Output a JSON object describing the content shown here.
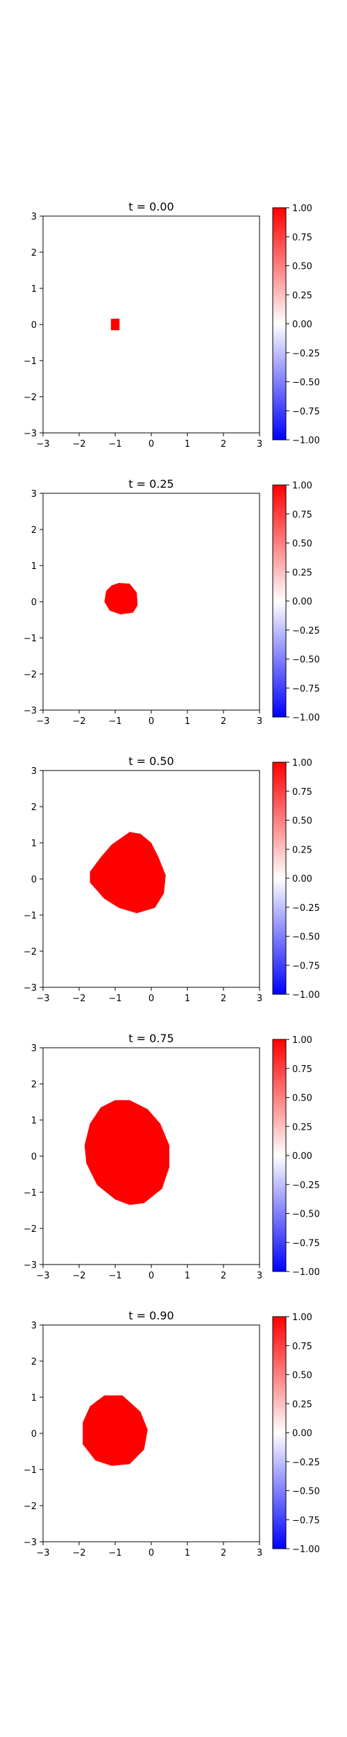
{
  "chart_data": [
    {
      "type": "heatmap",
      "title": "t = 0.00",
      "xlim": [
        -3,
        3
      ],
      "ylim": [
        -3,
        3
      ],
      "xticks": [
        -3,
        -2,
        -1,
        0,
        1,
        2,
        3
      ],
      "yticks": [
        -3,
        -2,
        -1,
        0,
        1,
        2,
        3
      ],
      "xtick_labels": [
        "−3",
        "−2",
        "−1",
        "0",
        "1",
        "2",
        "3"
      ],
      "ytick_labels": [
        "−3",
        "−2",
        "−1",
        "0",
        "1",
        "2",
        "3"
      ],
      "region_value": 1.0,
      "region_color": "#ff0000",
      "region_center": [
        -1.0,
        0.0
      ],
      "region_outline": [
        [
          -1.12,
          0.16
        ],
        [
          -0.88,
          0.16
        ],
        [
          -0.88,
          -0.16
        ],
        [
          -1.12,
          -0.16
        ]
      ],
      "colorbar": {
        "ticks": [
          1.0,
          0.75,
          0.5,
          0.25,
          0.0,
          -0.25,
          -0.5,
          -0.75,
          -1.0
        ],
        "labels": [
          "1.00",
          "0.75",
          "0.50",
          "0.25",
          "0.00",
          "−0.25",
          "−0.50",
          "−0.75",
          "−1.00"
        ],
        "colormap": "bwr"
      }
    },
    {
      "type": "heatmap",
      "title": "t = 0.25",
      "xlim": [
        -3,
        3
      ],
      "ylim": [
        -3,
        3
      ],
      "xticks": [
        -3,
        -2,
        -1,
        0,
        1,
        2,
        3
      ],
      "yticks": [
        -3,
        -2,
        -1,
        0,
        1,
        2,
        3
      ],
      "xtick_labels": [
        "−3",
        "−2",
        "−1",
        "0",
        "1",
        "2",
        "3"
      ],
      "ytick_labels": [
        "−3",
        "−2",
        "−1",
        "0",
        "1",
        "2",
        "3"
      ],
      "region_value": 1.0,
      "region_color": "#ff0000",
      "region_center": [
        -0.85,
        0.1
      ],
      "region_outline": [
        [
          -0.9,
          0.52
        ],
        [
          -0.6,
          0.5
        ],
        [
          -0.4,
          0.25
        ],
        [
          -0.38,
          -0.1
        ],
        [
          -0.5,
          -0.3
        ],
        [
          -0.85,
          -0.35
        ],
        [
          -1.15,
          -0.25
        ],
        [
          -1.3,
          0.0
        ],
        [
          -1.25,
          0.3
        ],
        [
          -1.1,
          0.45
        ]
      ],
      "colorbar": {
        "ticks": [
          1.0,
          0.75,
          0.5,
          0.25,
          0.0,
          -0.25,
          -0.5,
          -0.75,
          -1.0
        ],
        "labels": [
          "1.00",
          "0.75",
          "0.50",
          "0.25",
          "0.00",
          "−0.25",
          "−0.50",
          "−0.75",
          "−1.00"
        ],
        "colormap": "bwr"
      }
    },
    {
      "type": "heatmap",
      "title": "t = 0.50",
      "xlim": [
        -3,
        3
      ],
      "ylim": [
        -3,
        3
      ],
      "xticks": [
        -3,
        -2,
        -1,
        0,
        1,
        2,
        3
      ],
      "yticks": [
        -3,
        -2,
        -1,
        0,
        1,
        2,
        3
      ],
      "xtick_labels": [
        "−3",
        "−2",
        "−1",
        "0",
        "1",
        "2",
        "3"
      ],
      "ytick_labels": [
        "−3",
        "−2",
        "−1",
        "0",
        "1",
        "2",
        "3"
      ],
      "region_value": 1.0,
      "region_color": "#ff0000",
      "region_center": [
        -0.65,
        0.1
      ],
      "region_outline": [
        [
          -0.6,
          1.3
        ],
        [
          -0.3,
          1.25
        ],
        [
          0.0,
          1.0
        ],
        [
          0.2,
          0.6
        ],
        [
          0.4,
          0.1
        ],
        [
          0.35,
          -0.4
        ],
        [
          0.1,
          -0.8
        ],
        [
          -0.4,
          -0.95
        ],
        [
          -0.9,
          -0.8
        ],
        [
          -1.3,
          -0.55
        ],
        [
          -1.7,
          -0.1
        ],
        [
          -1.7,
          0.2
        ],
        [
          -1.4,
          0.6
        ],
        [
          -1.1,
          0.95
        ]
      ],
      "colorbar": {
        "ticks": [
          1.0,
          0.75,
          0.5,
          0.25,
          0.0,
          -0.25,
          -0.5,
          -0.75,
          -1.0
        ],
        "labels": [
          "1.00",
          "0.75",
          "0.50",
          "0.25",
          "0.00",
          "−0.25",
          "−0.50",
          "−0.75",
          "−1.00"
        ],
        "colormap": "bwr"
      }
    },
    {
      "type": "heatmap",
      "title": "t = 0.75",
      "xlim": [
        -3,
        3
      ],
      "ylim": [
        -3,
        3
      ],
      "xticks": [
        -3,
        -2,
        -1,
        0,
        1,
        2,
        3
      ],
      "yticks": [
        -3,
        -2,
        -1,
        0,
        1,
        2,
        3
      ],
      "xtick_labels": [
        "−3",
        "−2",
        "−1",
        "0",
        "1",
        "2",
        "3"
      ],
      "ytick_labels": [
        "−3",
        "−2",
        "−1",
        "0",
        "1",
        "2",
        "3"
      ],
      "region_value": 1.0,
      "region_color": "#ff0000",
      "region_center": [
        -0.8,
        0.15
      ],
      "region_outline": [
        [
          -1.0,
          1.55
        ],
        [
          -0.6,
          1.55
        ],
        [
          -0.1,
          1.3
        ],
        [
          0.25,
          0.9
        ],
        [
          0.5,
          0.3
        ],
        [
          0.5,
          -0.3
        ],
        [
          0.3,
          -0.9
        ],
        [
          -0.2,
          -1.3
        ],
        [
          -0.6,
          -1.35
        ],
        [
          -1.0,
          -1.2
        ],
        [
          -1.5,
          -0.8
        ],
        [
          -1.8,
          -0.2
        ],
        [
          -1.85,
          0.3
        ],
        [
          -1.7,
          0.9
        ],
        [
          -1.4,
          1.35
        ]
      ],
      "colorbar": {
        "ticks": [
          1.0,
          0.75,
          0.5,
          0.25,
          0.0,
          -0.25,
          -0.5,
          -0.75,
          -1.0
        ],
        "labels": [
          "1.00",
          "0.75",
          "0.50",
          "0.25",
          "0.00",
          "−0.25",
          "−0.50",
          "−0.75",
          "−1.00"
        ],
        "colormap": "bwr"
      }
    },
    {
      "type": "heatmap",
      "title": "t = 0.90",
      "xlim": [
        -3,
        3
      ],
      "ylim": [
        -3,
        3
      ],
      "xticks": [
        -3,
        -2,
        -1,
        0,
        1,
        2,
        3
      ],
      "yticks": [
        -3,
        -2,
        -1,
        0,
        1,
        2,
        3
      ],
      "xtick_labels": [
        "−3",
        "−2",
        "−1",
        "0",
        "1",
        "2",
        "3"
      ],
      "ytick_labels": [
        "−3",
        "−2",
        "−1",
        "0",
        "1",
        "2",
        "3"
      ],
      "region_value": 1.0,
      "region_color": "#ff0000",
      "region_center": [
        -1.05,
        0.1
      ],
      "region_outline": [
        [
          -1.3,
          1.05
        ],
        [
          -0.8,
          1.05
        ],
        [
          -0.3,
          0.6
        ],
        [
          -0.1,
          0.1
        ],
        [
          -0.2,
          -0.45
        ],
        [
          -0.6,
          -0.85
        ],
        [
          -1.1,
          -0.9
        ],
        [
          -1.55,
          -0.75
        ],
        [
          -1.9,
          -0.3
        ],
        [
          -1.9,
          0.3
        ],
        [
          -1.7,
          0.75
        ]
      ],
      "colorbar": {
        "ticks": [
          1.0,
          0.75,
          0.5,
          0.25,
          0.0,
          -0.25,
          -0.5,
          -0.75,
          -1.0
        ],
        "labels": [
          "1.00",
          "0.75",
          "0.50",
          "0.25",
          "0.00",
          "−0.25",
          "−0.50",
          "−0.75",
          "−1.00"
        ],
        "colormap": "bwr"
      }
    }
  ]
}
